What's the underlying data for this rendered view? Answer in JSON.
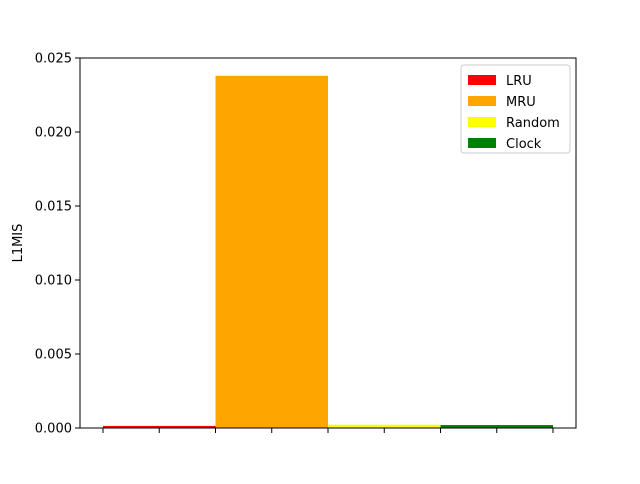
{
  "chart_data": {
    "type": "bar",
    "title": "",
    "xlabel": "",
    "ylabel": "L1MIS",
    "ylim": [
      0,
      0.025
    ],
    "yticks": [
      "0.000",
      "0.005",
      "0.010",
      "0.015",
      "0.020",
      "0.025"
    ],
    "x_tick_labels": [],
    "grid": false,
    "legend_position": "top-right",
    "series": [
      {
        "name": "LRU",
        "color": "#ff0000",
        "value": 0.00014
      },
      {
        "name": "MRU",
        "color": "#ffa500",
        "value": 0.0238
      },
      {
        "name": "Random",
        "color": "#ffff00",
        "value": 0.00022
      },
      {
        "name": "Clock",
        "color": "#008000",
        "value": 0.0002
      }
    ]
  }
}
